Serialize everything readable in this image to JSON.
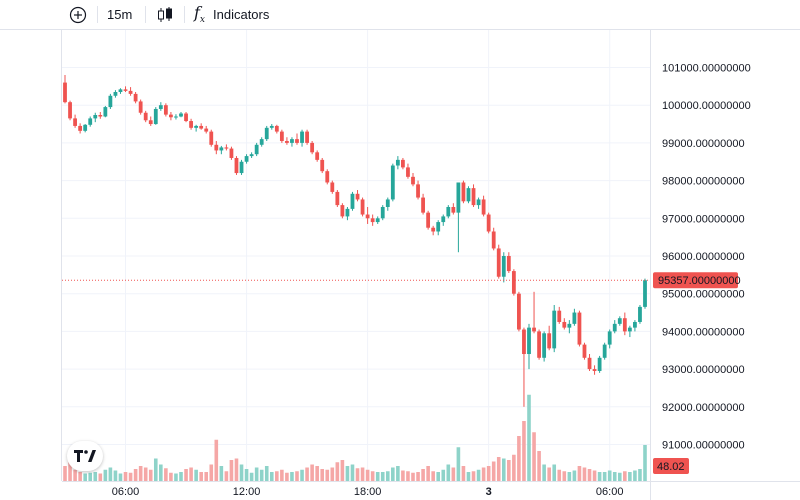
{
  "toolbar": {
    "add_symbol_icon": "plus-circle-icon",
    "interval_label": "15m",
    "chart_type_icon": "candlestick-icon",
    "indicators_icon": "fx-icon",
    "indicators_label": "Indicators"
  },
  "colors": {
    "up": "#26a69a",
    "down": "#ef5350",
    "volume_up": "#8ed3c9",
    "volume_down": "#f5a7a6",
    "grid": "#f0f3fa",
    "last_price_line": "#ef5350"
  },
  "last_price_label": "95357.00000000",
  "volume_label": "48.02",
  "chart_data": {
    "type": "candlestick",
    "interval": "15m",
    "ylim": [
      90500,
      101800
    ],
    "y_ticks": [
      {
        "value": 101000,
        "label": "101000.00000000"
      },
      {
        "value": 100000,
        "label": "100000.00000000"
      },
      {
        "value": 99000,
        "label": "99000.00000000"
      },
      {
        "value": 98000,
        "label": "98000.00000000"
      },
      {
        "value": 97000,
        "label": "97000.00000000"
      },
      {
        "value": 96000,
        "label": "96000.00000000"
      },
      {
        "value": 95000,
        "label": "95000.00000000"
      },
      {
        "value": 94000,
        "label": "94000.00000000"
      },
      {
        "value": 93000,
        "label": "93000.00000000"
      },
      {
        "value": 92000,
        "label": "92000.00000000"
      },
      {
        "value": 91000,
        "label": "91000.00000000"
      }
    ],
    "x_ticks": [
      {
        "index": 12,
        "label": "06:00"
      },
      {
        "index": 36,
        "label": "12:00"
      },
      {
        "index": 60,
        "label": "18:00"
      },
      {
        "index": 84,
        "label": "3"
      },
      {
        "index": 108,
        "label": "06:00"
      }
    ],
    "last_price": 95357,
    "last_volume": 48.02,
    "volume_ylim": [
      0,
      120
    ],
    "candles": [
      [
        100600,
        100800,
        100050,
        100080,
        20
      ],
      [
        100080,
        100120,
        99600,
        99650,
        30
      ],
      [
        99650,
        99750,
        99400,
        99450,
        15
      ],
      [
        99450,
        99520,
        99250,
        99320,
        12
      ],
      [
        99320,
        99500,
        99280,
        99480,
        10
      ],
      [
        99480,
        99700,
        99430,
        99650,
        11
      ],
      [
        99650,
        99800,
        99550,
        99740,
        12
      ],
      [
        99740,
        99820,
        99640,
        99700,
        10
      ],
      [
        99700,
        99980,
        99680,
        99950,
        15
      ],
      [
        99950,
        100300,
        99900,
        100250,
        18
      ],
      [
        100250,
        100400,
        100200,
        100350,
        14
      ],
      [
        100350,
        100450,
        100300,
        100420,
        10
      ],
      [
        100420,
        100500,
        100350,
        100380,
        12
      ],
      [
        100380,
        100480,
        100250,
        100300,
        11
      ],
      [
        100300,
        100350,
        100050,
        100100,
        16
      ],
      [
        100100,
        100150,
        99750,
        99800,
        20
      ],
      [
        99800,
        99850,
        99550,
        99600,
        18
      ],
      [
        99600,
        99700,
        99450,
        99500,
        15
      ],
      [
        99500,
        99950,
        99480,
        99900,
        30
      ],
      [
        99900,
        100080,
        99850,
        100000,
        22
      ],
      [
        100000,
        100050,
        99700,
        99750,
        17
      ],
      [
        99750,
        99820,
        99600,
        99680,
        11
      ],
      [
        99680,
        99760,
        99620,
        99700,
        10
      ],
      [
        99700,
        99820,
        99680,
        99780,
        12
      ],
      [
        99780,
        99820,
        99550,
        99580,
        16
      ],
      [
        99580,
        99640,
        99350,
        99400,
        18
      ],
      [
        99400,
        99480,
        99300,
        99450,
        15
      ],
      [
        99450,
        99520,
        99350,
        99380,
        12
      ],
      [
        99380,
        99450,
        99250,
        99300,
        12
      ],
      [
        99300,
        99350,
        98900,
        98950,
        22
      ],
      [
        98950,
        99050,
        98700,
        98800,
        55
      ],
      [
        98800,
        98920,
        98700,
        98880,
        20
      ],
      [
        98880,
        98960,
        98800,
        98850,
        13
      ],
      [
        98850,
        98900,
        98550,
        98600,
        28
      ],
      [
        98600,
        98650,
        98150,
        98200,
        30
      ],
      [
        98200,
        98550,
        98150,
        98500,
        22
      ],
      [
        98500,
        98700,
        98450,
        98650,
        16
      ],
      [
        98650,
        98750,
        98600,
        98700,
        11
      ],
      [
        98700,
        99000,
        98650,
        98950,
        18
      ],
      [
        98950,
        99150,
        98900,
        99100,
        15
      ],
      [
        99100,
        99450,
        99050,
        99400,
        20
      ],
      [
        99400,
        99500,
        99350,
        99450,
        12
      ],
      [
        99450,
        99480,
        99250,
        99300,
        13
      ],
      [
        99300,
        99350,
        99000,
        99050,
        15
      ],
      [
        99050,
        99150,
        98950,
        99000,
        11
      ],
      [
        99000,
        99150,
        98900,
        99100,
        12
      ],
      [
        99100,
        99250,
        98950,
        99000,
        13
      ],
      [
        99000,
        99350,
        98900,
        99300,
        15
      ],
      [
        99300,
        99350,
        98950,
        99000,
        18
      ],
      [
        99000,
        99050,
        98700,
        98750,
        22
      ],
      [
        98750,
        98800,
        98500,
        98550,
        20
      ],
      [
        98550,
        98600,
        98200,
        98250,
        16
      ],
      [
        98250,
        98300,
        97900,
        97950,
        15
      ],
      [
        97950,
        98000,
        97650,
        97700,
        18
      ],
      [
        97700,
        97750,
        97300,
        97350,
        25
      ],
      [
        97350,
        97400,
        97000,
        97050,
        28
      ],
      [
        97050,
        97300,
        96950,
        97250,
        20
      ],
      [
        97250,
        97700,
        97200,
        97650,
        22
      ],
      [
        97650,
        97750,
        97450,
        97500,
        17
      ],
      [
        97500,
        97550,
        97050,
        97100,
        18
      ],
      [
        97100,
        97300,
        96850,
        97000,
        15
      ],
      [
        97000,
        97100,
        96800,
        96900,
        13
      ],
      [
        96900,
        97050,
        96850,
        97000,
        12
      ],
      [
        97000,
        97350,
        96950,
        97300,
        12
      ],
      [
        97300,
        97550,
        97200,
        97500,
        13
      ],
      [
        97500,
        98450,
        97450,
        98400,
        18
      ],
      [
        98400,
        98650,
        98300,
        98550,
        20
      ],
      [
        98550,
        98600,
        98300,
        98350,
        14
      ],
      [
        98350,
        98450,
        98050,
        98100,
        13
      ],
      [
        98100,
        98200,
        97850,
        97900,
        11
      ],
      [
        97900,
        98000,
        97500,
        97550,
        12
      ],
      [
        97550,
        97650,
        97100,
        97150,
        16
      ],
      [
        97150,
        97200,
        96700,
        96750,
        20
      ],
      [
        96750,
        96800,
        96550,
        96650,
        13
      ],
      [
        96650,
        96950,
        96550,
        96900,
        12
      ],
      [
        96900,
        97100,
        96800,
        97050,
        15
      ],
      [
        97050,
        97350,
        97000,
        97300,
        22
      ],
      [
        97300,
        97400,
        97100,
        97150,
        18
      ],
      [
        97150,
        97950,
        96100,
        97950,
        45
      ],
      [
        97950,
        98000,
        97400,
        97450,
        20
      ],
      [
        97450,
        97850,
        97400,
        97800,
        12
      ],
      [
        97800,
        97900,
        97300,
        97350,
        13
      ],
      [
        97350,
        97550,
        97250,
        97500,
        15
      ],
      [
        97500,
        97600,
        97050,
        97100,
        18
      ],
      [
        97100,
        97150,
        96600,
        96650,
        20
      ],
      [
        96650,
        96750,
        96150,
        96200,
        26
      ],
      [
        96200,
        96300,
        95400,
        95450,
        32
      ],
      [
        95450,
        96100,
        95300,
        96000,
        30
      ],
      [
        96000,
        96100,
        95550,
        95600,
        28
      ],
      [
        95600,
        95650,
        94950,
        95000,
        35
      ],
      [
        95000,
        95050,
        94000,
        94050,
        60
      ],
      [
        94050,
        94100,
        92000,
        93400,
        80
      ],
      [
        93400,
        94200,
        93000,
        94100,
        115
      ],
      [
        94100,
        95050,
        93950,
        94000,
        65
      ],
      [
        94000,
        94050,
        93250,
        93300,
        40
      ],
      [
        93300,
        94000,
        93200,
        93950,
        22
      ],
      [
        93950,
        94150,
        93500,
        93550,
        18
      ],
      [
        93550,
        94700,
        93450,
        94550,
        22
      ],
      [
        94550,
        94650,
        94200,
        94250,
        15
      ],
      [
        94250,
        94350,
        94050,
        94100,
        13
      ],
      [
        94100,
        94300,
        93950,
        94200,
        12
      ],
      [
        94200,
        94600,
        94150,
        94500,
        14
      ],
      [
        94500,
        94550,
        93600,
        93650,
        20
      ],
      [
        93650,
        93700,
        93250,
        93300,
        18
      ],
      [
        93300,
        93400,
        92950,
        93000,
        16
      ],
      [
        93000,
        93100,
        92850,
        92950,
        14
      ],
      [
        92950,
        93350,
        92900,
        93300,
        12
      ],
      [
        93300,
        93700,
        93250,
        93650,
        12
      ],
      [
        93650,
        94050,
        93550,
        94000,
        14
      ],
      [
        94000,
        94300,
        93950,
        94200,
        12
      ],
      [
        94200,
        94400,
        94150,
        94350,
        11
      ],
      [
        94350,
        94500,
        93900,
        94000,
        13
      ],
      [
        94000,
        94150,
        93850,
        94100,
        12
      ],
      [
        94100,
        94300,
        94000,
        94250,
        14
      ],
      [
        94250,
        94700,
        94200,
        94650,
        16
      ],
      [
        94650,
        95400,
        94600,
        95357,
        48.02
      ]
    ]
  }
}
